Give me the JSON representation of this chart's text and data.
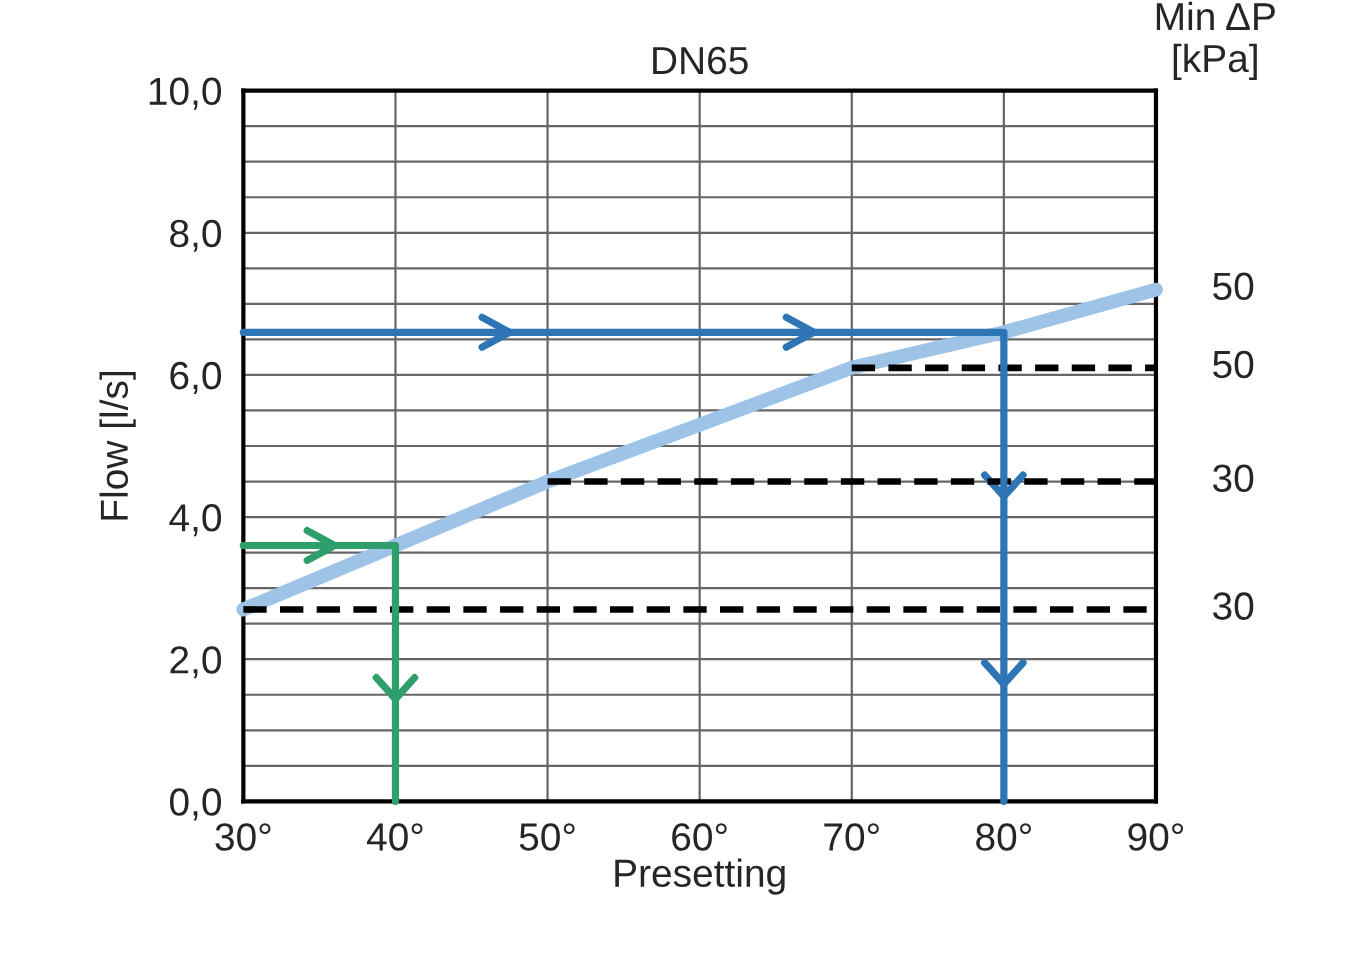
{
  "chart_data": {
    "type": "line",
    "title": "DN65",
    "xlabel": "Presetting",
    "ylabel": "Flow [l/s]",
    "y2label": "Min ΔP\n[kPa]",
    "xlim": [
      30,
      90
    ],
    "ylim": [
      0,
      10
    ],
    "xticks": [
      {
        "value": 30,
        "label": "30°"
      },
      {
        "value": 40,
        "label": "40°"
      },
      {
        "value": 50,
        "label": "50°"
      },
      {
        "value": 60,
        "label": "60°"
      },
      {
        "value": 70,
        "label": "70°"
      },
      {
        "value": 80,
        "label": "80°"
      },
      {
        "value": 90,
        "label": "90°"
      }
    ],
    "yticks": [
      {
        "value": 0,
        "label": "0,0"
      },
      {
        "value": 0.5,
        "label": null
      },
      {
        "value": 1,
        "label": null
      },
      {
        "value": 1.5,
        "label": null
      },
      {
        "value": 2,
        "label": "2,0"
      },
      {
        "value": 2.5,
        "label": null
      },
      {
        "value": 3,
        "label": null
      },
      {
        "value": 3.5,
        "label": null
      },
      {
        "value": 4,
        "label": "4,0"
      },
      {
        "value": 4.5,
        "label": null
      },
      {
        "value": 5,
        "label": null
      },
      {
        "value": 5.5,
        "label": null
      },
      {
        "value": 6,
        "label": "6,0"
      },
      {
        "value": 6.5,
        "label": null
      },
      {
        "value": 7,
        "label": null
      },
      {
        "value": 7.5,
        "label": null
      },
      {
        "value": 8,
        "label": "8,0"
      },
      {
        "value": 8.5,
        "label": null
      },
      {
        "value": 9,
        "label": null
      },
      {
        "value": 9.5,
        "label": null
      },
      {
        "value": 10,
        "label": "10,0"
      }
    ],
    "grid": true,
    "legend": false,
    "series": [
      {
        "name": "50",
        "color": "#9dc3e6",
        "x": [
          30,
          40,
          50,
          60,
          70,
          80,
          90
        ],
        "values": [
          2.7,
          3.6,
          4.5,
          5.3,
          6.1,
          6.6,
          7.2
        ]
      },
      {
        "name": "50",
        "color": "#000000",
        "line_style": "dashed",
        "x": [
          70,
          90
        ],
        "values": [
          6.1,
          6.1
        ]
      },
      {
        "name": "30",
        "color": "#000000",
        "line_style": "dashed",
        "x": [
          50,
          90
        ],
        "values": [
          4.5,
          4.5
        ]
      },
      {
        "name": "30",
        "color": "#000000",
        "line_style": "dashed",
        "x": [
          30,
          90
        ],
        "values": [
          2.7,
          2.7
        ]
      },
      {
        "color": "#2e75b6",
        "x": [
          30,
          80,
          80
        ],
        "values": [
          6.6,
          6.6,
          0
        ]
      },
      {
        "color": "#2e9e6b",
        "x": [
          30,
          40,
          40
        ],
        "values": [
          3.6,
          3.6,
          0
        ]
      }
    ]
  }
}
